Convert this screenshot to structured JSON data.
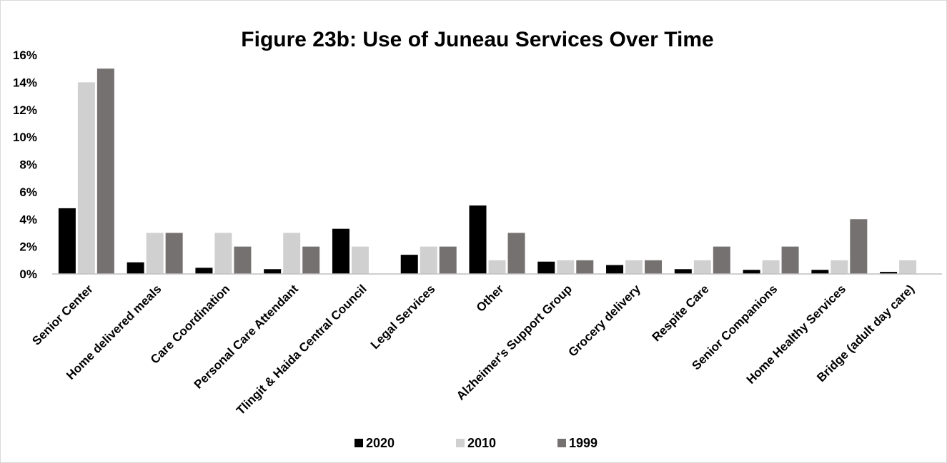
{
  "chart_data": {
    "type": "bar",
    "title": "Figure 23b: Use of Juneau Services Over Time",
    "xlabel": "",
    "ylabel": "",
    "ylim": [
      0,
      16
    ],
    "y_ticks": [
      "0%",
      "2%",
      "4%",
      "6%",
      "8%",
      "10%",
      "12%",
      "14%",
      "16%"
    ],
    "y_unit": "%",
    "grid": false,
    "legend_position": "bottom",
    "categories": [
      "Senior Center",
      "Home delivered meals",
      "Care Coordination",
      "Personal Care Attendant",
      "Tlingit & Haida Central Council",
      "Legal Services",
      "Other",
      "Alzheimer's Support Group",
      "Grocery delivery",
      "Respite Care",
      "Senior Companions",
      "Home Healthy Services",
      "Bridge (adult day care)"
    ],
    "series": [
      {
        "name": "2020",
        "color": "#000000",
        "values": [
          4.8,
          0.85,
          0.45,
          0.35,
          3.3,
          1.4,
          5.0,
          0.9,
          0.65,
          0.35,
          0.3,
          0.3,
          0.15
        ]
      },
      {
        "name": "2010",
        "color": "#d0d0d0",
        "values": [
          14,
          3,
          3,
          3,
          2,
          2,
          1,
          1,
          1,
          1,
          1,
          1,
          1
        ]
      },
      {
        "name": "1999",
        "color": "#767171",
        "values": [
          15,
          3,
          2,
          2,
          null,
          2,
          3,
          1,
          1,
          2,
          2,
          4,
          null
        ]
      }
    ]
  }
}
